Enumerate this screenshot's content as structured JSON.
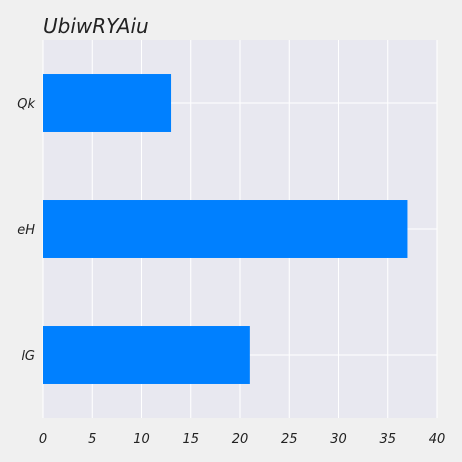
{
  "chart_data": {
    "type": "bar",
    "orientation": "horizontal",
    "title": "UbiwRYAiu",
    "categories": [
      "Qk",
      "eH",
      "lG"
    ],
    "values": [
      13,
      37,
      21
    ],
    "xlabel": "",
    "ylabel": "",
    "xlim": [
      0,
      40
    ],
    "xticks": [
      0,
      5,
      10,
      15,
      20,
      25,
      30,
      35,
      40
    ],
    "grid": true,
    "legend": "none",
    "colors": {
      "bar": "#0080ff",
      "plot_background": "#e8e8f0",
      "figure_background": "#f0f0f0",
      "grid": "#ffffff",
      "text": "#222222"
    }
  }
}
